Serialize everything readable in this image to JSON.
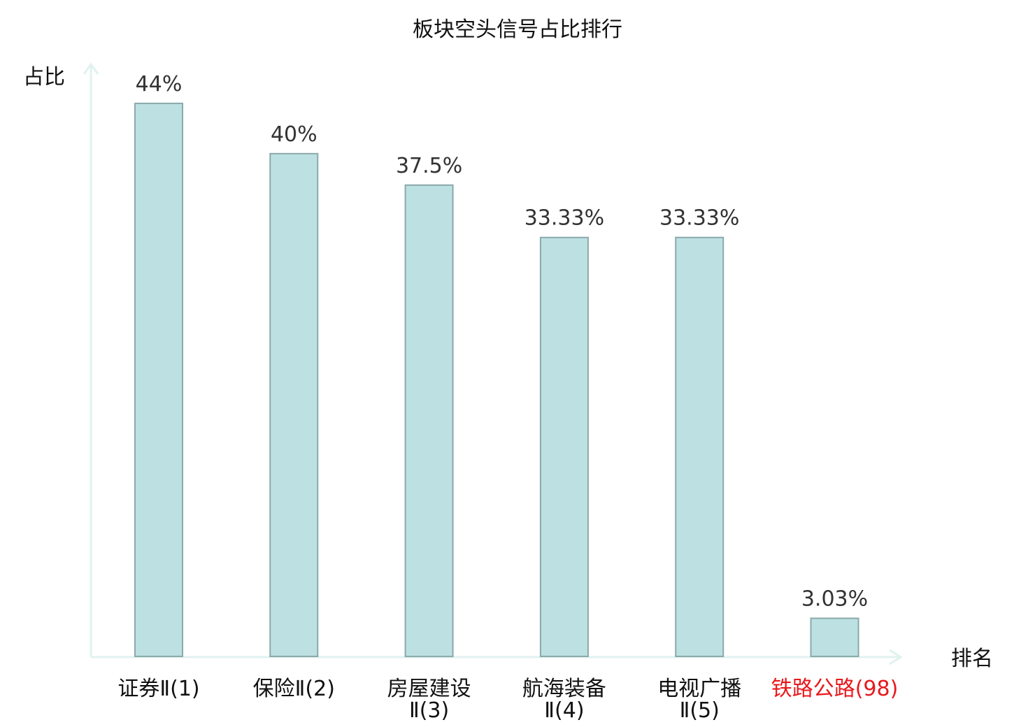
{
  "chart_data": {
    "type": "bar",
    "title": "板块空头信号占比排行",
    "ylabel": "占比",
    "xlabel": "排名",
    "ylim": [
      0,
      50
    ],
    "grid": false,
    "categories": [
      {
        "line1": "证券Ⅱ(1)",
        "line2": ""
      },
      {
        "line1": "保险Ⅱ(2)",
        "line2": ""
      },
      {
        "line1": "房屋建设",
        "line2": "Ⅱ(3)"
      },
      {
        "line1": "航海装备",
        "line2": "Ⅱ(4)"
      },
      {
        "line1": "电视广播",
        "line2": "Ⅱ(5)"
      },
      {
        "line1": "铁路公路(98)",
        "line2": ""
      }
    ],
    "values": [
      44,
      40,
      37.5,
      33.33,
      33.33,
      3.03
    ],
    "value_labels": [
      "44%",
      "40%",
      "37.5%",
      "33.33%",
      "33.33%",
      "3.03%"
    ],
    "highlight_index": 5,
    "colors": {
      "bar_fill": "#bde1e3",
      "bar_stroke": "#8aa9aa",
      "axis": "#e0f2ef",
      "highlight_text": "#e8191c"
    }
  }
}
